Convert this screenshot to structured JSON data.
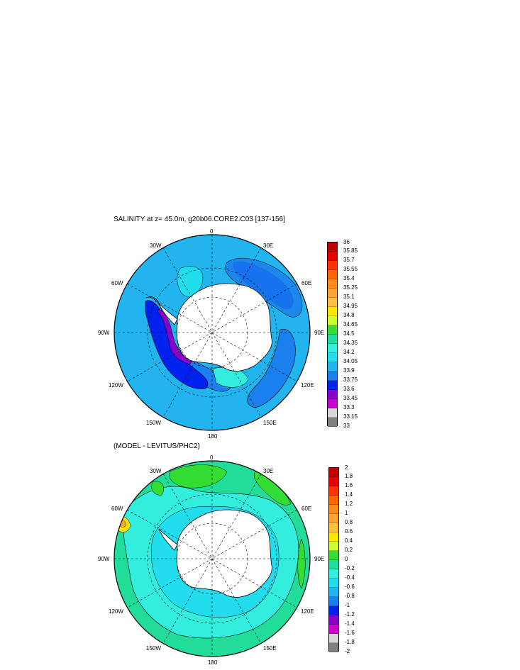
{
  "chart_data": [
    {
      "type": "heatmap",
      "title": "SALINITY at z=  45.0m, g20b06.CORE2.C03 [137-156]",
      "projection": "south-polar-stereographic",
      "lon_labels": [
        "0",
        "30E",
        "60E",
        "90E",
        "120E",
        "150E",
        "180",
        "150W",
        "120W",
        "90W",
        "60W",
        "30W"
      ],
      "legend_ticks": [
        "36",
        "35.85",
        "35.7",
        "35.55",
        "35.4",
        "35.25",
        "35.1",
        "34.95",
        "34.8",
        "34.65",
        "34.5",
        "34.35",
        "34.2",
        "34.05",
        "33.9",
        "33.75",
        "33.6",
        "33.45",
        "33.3",
        "33.15",
        "33"
      ],
      "legend_colors": [
        "#c00000",
        "#e60000",
        "#ff3300",
        "#ff6600",
        "#ff8c1a",
        "#ffa333",
        "#ffbf40",
        "#ffe600",
        "#ccff33",
        "#33dd33",
        "#22dd99",
        "#33eedd",
        "#22ddee",
        "#22b4ee",
        "#1a80ee",
        "#0022ee",
        "#8800cc",
        "#cc00cc",
        "#d8d8d8",
        "#808080"
      ],
      "grid": true
    },
    {
      "type": "heatmap",
      "title": "(MODEL - LEVITUS/PHC2)",
      "projection": "south-polar-stereographic",
      "lon_labels": [
        "0",
        "30E",
        "60E",
        "90E",
        "120E",
        "150E",
        "180",
        "150W",
        "120W",
        "90W",
        "60W",
        "30W"
      ],
      "legend_ticks": [
        "2",
        "1.8",
        "1.6",
        "1.4",
        "1.2",
        "1",
        "0.8",
        "0.6",
        "0.4",
        "0.2",
        "0",
        "-0.2",
        "-0.4",
        "-0.6",
        "-0.8",
        "-1",
        "-1.2",
        "-1.4",
        "-1.6",
        "-1.8",
        "-2"
      ],
      "legend_colors": [
        "#c00000",
        "#e60000",
        "#ff3300",
        "#ff6600",
        "#ff8c1a",
        "#ffa333",
        "#ffbf40",
        "#ffe600",
        "#ccff33",
        "#33dd33",
        "#22dd99",
        "#33eedd",
        "#22ddee",
        "#22b4ee",
        "#1a80ee",
        "#0022ee",
        "#8800cc",
        "#cc00cc",
        "#d8d8d8",
        "#808080"
      ],
      "grid": true
    }
  ]
}
